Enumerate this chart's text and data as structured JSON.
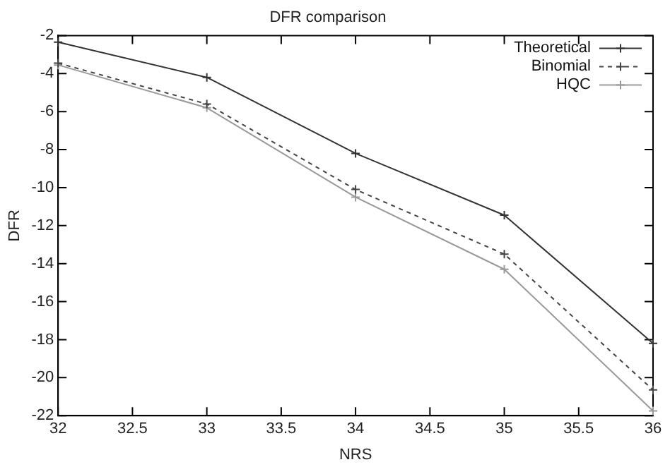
{
  "chart_data": {
    "type": "line",
    "title": "DFR comparison",
    "xlabel": "NRS",
    "ylabel": "DFR",
    "x": [
      32,
      33,
      34,
      35,
      36
    ],
    "series": [
      {
        "name": "Theoretical",
        "color": "#333333",
        "line_style": "solid",
        "values": [
          -2.35,
          -4.2,
          -8.2,
          -11.45,
          -18.2
        ]
      },
      {
        "name": "Binomial",
        "color": "#444444",
        "line_style": "dashed",
        "values": [
          -3.45,
          -5.6,
          -10.1,
          -13.5,
          -20.65
        ]
      },
      {
        "name": "HQC",
        "color": "#999999",
        "line_style": "solid",
        "values": [
          -3.55,
          -5.8,
          -10.5,
          -14.3,
          -21.75
        ]
      }
    ],
    "xlim": [
      32,
      36
    ],
    "xticks": [
      32,
      32.5,
      33,
      33.5,
      34,
      34.5,
      35,
      35.5,
      36
    ],
    "ylim": [
      -22,
      -2
    ],
    "yticks": [
      -22,
      -20,
      -18,
      -16,
      -14,
      -12,
      -10,
      -8,
      -6,
      -4,
      -2
    ],
    "grid": false,
    "legend": "top right",
    "marker": "cross"
  }
}
